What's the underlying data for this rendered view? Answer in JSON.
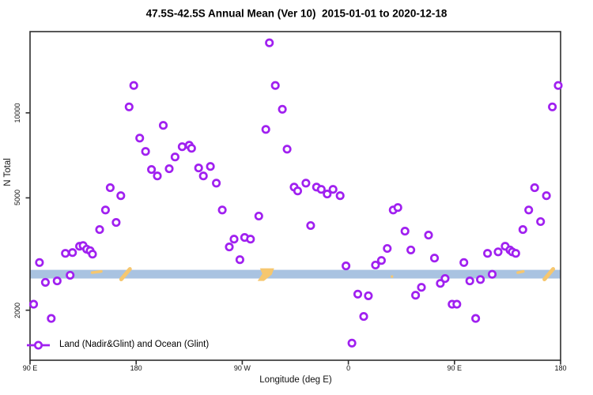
{
  "header": {
    "title": "47.5S-42.5S Annual Mean (Ver 10)  2015-01-01 to 2020-12-18"
  },
  "legend": {
    "label": "Land (Nadir&Glint) and Ocean (Glint)"
  },
  "colors": {
    "point_stroke": "#A020F0",
    "point_fill": "#ffffff",
    "ocean_band": "#A9C3E1",
    "land_patch": "#F6C76F",
    "axis": "#2e2e2e",
    "text": "#111111"
  },
  "chart_data": {
    "type": "scatter",
    "title": "47.5S-42.5S Annual Mean (Ver 10)  2015-01-01 to 2020-12-18",
    "xlabel": "Longitude (deg E)",
    "ylabel": "N Total",
    "x_axis_note": "longitude wraps: 90E to 180 to 90W to 0 to 90E to 180",
    "x_range": [
      0,
      450
    ],
    "x_ticks": [
      {
        "pos": 0,
        "label": "90 E"
      },
      {
        "pos": 90,
        "label": "180"
      },
      {
        "pos": 180,
        "label": "90 W"
      },
      {
        "pos": 270,
        "label": "0"
      },
      {
        "pos": 360,
        "label": "90 E"
      },
      {
        "pos": 450,
        "label": "180"
      }
    ],
    "y_scale": "log",
    "y_range": [
      1330,
      19400
    ],
    "y_ticks": [
      2000,
      5000,
      10000
    ],
    "grid": false,
    "legend_position": "bottom-left-inside",
    "ocean_band": {
      "n_top": 2780,
      "n_bottom": 2590
    },
    "land_patches": [
      {
        "lon_start": 52,
        "lon_end": 61,
        "shape": "sliver"
      },
      {
        "lon_start": 76,
        "lon_end": 86,
        "shape": "diagonal"
      },
      {
        "lon_start": 193,
        "lon_end": 207,
        "shape": "blob"
      },
      {
        "lon_start": 306,
        "lon_end": 308,
        "shape": "speck"
      },
      {
        "lon_start": 413,
        "lon_end": 419,
        "shape": "sliver"
      },
      {
        "lon_start": 435,
        "lon_end": 445,
        "shape": "diagonal"
      }
    ],
    "series": [
      {
        "name": "Land (Nadir&Glint) and Ocean (Glint)",
        "marker": "open-circle",
        "points": [
          [
            3,
            2100
          ],
          [
            8,
            2950
          ],
          [
            13,
            2510
          ],
          [
            18,
            1870
          ],
          [
            23,
            2540
          ],
          [
            30,
            3180
          ],
          [
            34,
            2660
          ],
          [
            36,
            3200
          ],
          [
            42,
            3370
          ],
          [
            45,
            3390
          ],
          [
            48,
            3290
          ],
          [
            51,
            3250
          ],
          [
            53,
            3160
          ],
          [
            59,
            3860
          ],
          [
            64,
            4530
          ],
          [
            68,
            5430
          ],
          [
            73,
            4090
          ],
          [
            77,
            5090
          ],
          [
            84,
            10500
          ],
          [
            88,
            12500
          ],
          [
            93,
            8140
          ],
          [
            98,
            7300
          ],
          [
            103,
            6300
          ],
          [
            108,
            5980
          ],
          [
            113,
            9030
          ],
          [
            118,
            6340
          ],
          [
            123,
            6980
          ],
          [
            129,
            7590
          ],
          [
            135,
            7680
          ],
          [
            137,
            7490
          ],
          [
            143,
            6380
          ],
          [
            147,
            5980
          ],
          [
            153,
            6460
          ],
          [
            158,
            5640
          ],
          [
            163,
            4530
          ],
          [
            169,
            3350
          ],
          [
            173,
            3570
          ],
          [
            178,
            3020
          ],
          [
            182,
            3620
          ],
          [
            187,
            3570
          ],
          [
            194,
            4310
          ],
          [
            200,
            8740
          ],
          [
            203,
            17700
          ],
          [
            208,
            12500
          ],
          [
            214,
            10300
          ],
          [
            218,
            7440
          ],
          [
            224,
            5460
          ],
          [
            227,
            5290
          ],
          [
            234,
            5640
          ],
          [
            238,
            3990
          ],
          [
            243,
            5460
          ],
          [
            247,
            5360
          ],
          [
            252,
            5160
          ],
          [
            257,
            5360
          ],
          [
            263,
            5090
          ],
          [
            268,
            2870
          ],
          [
            273,
            1530
          ],
          [
            278,
            2280
          ],
          [
            283,
            1900
          ],
          [
            287,
            2250
          ],
          [
            293,
            2890
          ],
          [
            298,
            3000
          ],
          [
            303,
            3310
          ],
          [
            308,
            4530
          ],
          [
            312,
            4620
          ],
          [
            318,
            3810
          ],
          [
            323,
            3270
          ],
          [
            327,
            2260
          ],
          [
            332,
            2410
          ],
          [
            338,
            3690
          ],
          [
            343,
            3060
          ],
          [
            348,
            2490
          ],
          [
            352,
            2590
          ],
          [
            358,
            2100
          ],
          [
            362,
            2100
          ],
          [
            368,
            2950
          ],
          [
            373,
            2540
          ],
          [
            378,
            1870
          ],
          [
            382,
            2570
          ],
          [
            388,
            3180
          ],
          [
            392,
            2680
          ],
          [
            397,
            3220
          ],
          [
            403,
            3370
          ],
          [
            407,
            3270
          ],
          [
            409,
            3220
          ],
          [
            412,
            3180
          ],
          [
            418,
            3860
          ],
          [
            423,
            4530
          ],
          [
            428,
            5430
          ],
          [
            433,
            4120
          ],
          [
            438,
            5090
          ],
          [
            443,
            10500
          ],
          [
            448,
            12500
          ]
        ]
      }
    ]
  }
}
